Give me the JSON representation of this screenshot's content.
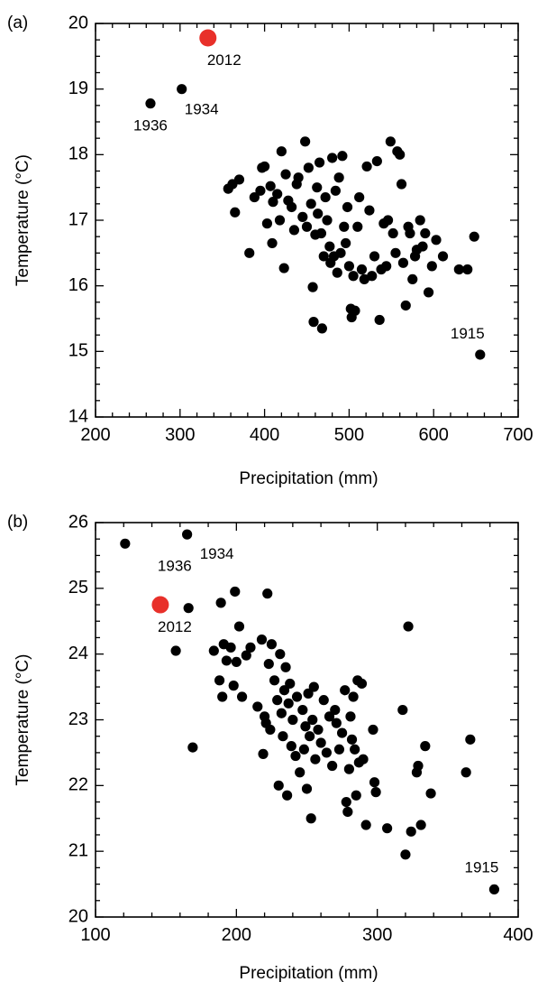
{
  "chart_data": [
    {
      "type": "scatter",
      "panel_label": "(a)",
      "xlabel": "Precipitation (mm)",
      "ylabel": "Temperature (°C)",
      "xlim": [
        200,
        700
      ],
      "ylim": [
        14,
        20
      ],
      "x_ticks": [
        200,
        300,
        400,
        500,
        600,
        700
      ],
      "y_ticks": [
        14,
        15,
        16,
        17,
        18,
        19,
        20
      ],
      "grid": false,
      "highlight_color": "#e8302a",
      "point_color": "#000000",
      "highlight": {
        "x": 333,
        "y": 19.78,
        "label": "2012"
      },
      "annotations": [
        {
          "x": 265,
          "y": 18.78,
          "label": "1936"
        },
        {
          "x": 302,
          "y": 19.0,
          "label": "1934"
        },
        {
          "x": 655,
          "y": 14.95,
          "label": "1915"
        }
      ],
      "points": [
        [
          265,
          18.78
        ],
        [
          302,
          19.0
        ],
        [
          655,
          14.95
        ],
        [
          357,
          17.48
        ],
        [
          362,
          17.55
        ],
        [
          365,
          17.12
        ],
        [
          370,
          17.62
        ],
        [
          382,
          16.5
        ],
        [
          388,
          17.35
        ],
        [
          395,
          17.45
        ],
        [
          397,
          17.8
        ],
        [
          400,
          17.82
        ],
        [
          403,
          16.95
        ],
        [
          407,
          17.52
        ],
        [
          409,
          16.65
        ],
        [
          410,
          17.28
        ],
        [
          415,
          17.4
        ],
        [
          418,
          17.0
        ],
        [
          420,
          18.05
        ],
        [
          423,
          16.27
        ],
        [
          425,
          17.7
        ],
        [
          428,
          17.3
        ],
        [
          432,
          17.2
        ],
        [
          435,
          16.85
        ],
        [
          438,
          17.55
        ],
        [
          440,
          17.65
        ],
        [
          445,
          17.05
        ],
        [
          448,
          18.2
        ],
        [
          450,
          16.9
        ],
        [
          452,
          17.8
        ],
        [
          455,
          17.25
        ],
        [
          457,
          15.98
        ],
        [
          458,
          15.45
        ],
        [
          460,
          16.78
        ],
        [
          462,
          17.5
        ],
        [
          463,
          17.1
        ],
        [
          465,
          17.88
        ],
        [
          467,
          16.8
        ],
        [
          468,
          15.35
        ],
        [
          470,
          16.45
        ],
        [
          472,
          17.35
        ],
        [
          474,
          17.0
        ],
        [
          477,
          16.6
        ],
        [
          478,
          16.35
        ],
        [
          480,
          17.95
        ],
        [
          482,
          16.45
        ],
        [
          484,
          17.45
        ],
        [
          486,
          16.2
        ],
        [
          488,
          17.65
        ],
        [
          490,
          16.5
        ],
        [
          492,
          17.98
        ],
        [
          494,
          16.9
        ],
        [
          496,
          16.65
        ],
        [
          498,
          17.2
        ],
        [
          500,
          16.3
        ],
        [
          502,
          15.65
        ],
        [
          503,
          15.52
        ],
        [
          505,
          16.15
        ],
        [
          507,
          15.62
        ],
        [
          510,
          16.9
        ],
        [
          512,
          17.35
        ],
        [
          515,
          16.25
        ],
        [
          518,
          16.1
        ],
        [
          521,
          17.82
        ],
        [
          524,
          17.15
        ],
        [
          527,
          16.15
        ],
        [
          530,
          16.45
        ],
        [
          533,
          17.9
        ],
        [
          536,
          15.48
        ],
        [
          538,
          16.25
        ],
        [
          541,
          16.95
        ],
        [
          544,
          16.3
        ],
        [
          546,
          17.0
        ],
        [
          549,
          18.2
        ],
        [
          552,
          16.8
        ],
        [
          555,
          16.5
        ],
        [
          557,
          18.05
        ],
        [
          560,
          18.0
        ],
        [
          562,
          17.55
        ],
        [
          564,
          16.35
        ],
        [
          567,
          15.7
        ],
        [
          570,
          16.9
        ],
        [
          572,
          16.8
        ],
        [
          575,
          16.1
        ],
        [
          578,
          16.45
        ],
        [
          580,
          16.55
        ],
        [
          584,
          17.0
        ],
        [
          587,
          16.6
        ],
        [
          590,
          16.8
        ],
        [
          594,
          15.9
        ],
        [
          598,
          16.3
        ],
        [
          603,
          16.7
        ],
        [
          611,
          16.45
        ],
        [
          630,
          16.25
        ],
        [
          640,
          16.25
        ],
        [
          648,
          16.75
        ]
      ]
    },
    {
      "type": "scatter",
      "panel_label": "(b)",
      "xlabel": "Precipitation (mm)",
      "ylabel": "Temperature (°C)",
      "xlim": [
        100,
        400
      ],
      "ylim": [
        20,
        26
      ],
      "x_ticks": [
        100,
        200,
        300,
        400
      ],
      "y_ticks": [
        20,
        21,
        22,
        23,
        24,
        25,
        26
      ],
      "grid": false,
      "highlight_color": "#e8302a",
      "point_color": "#000000",
      "highlight": {
        "x": 146,
        "y": 24.75,
        "label": "2012"
      },
      "annotations": [
        {
          "x": 121,
          "y": 25.68,
          "label": "1936"
        },
        {
          "x": 165,
          "y": 25.82,
          "label": "1934"
        },
        {
          "x": 383,
          "y": 20.42,
          "label": "1915"
        }
      ],
      "points": [
        [
          121,
          25.68
        ],
        [
          165,
          25.82
        ],
        [
          383,
          20.42
        ],
        [
          157,
          24.05
        ],
        [
          166,
          24.7
        ],
        [
          169,
          22.58
        ],
        [
          184,
          24.05
        ],
        [
          188,
          23.6
        ],
        [
          189,
          24.78
        ],
        [
          190,
          23.35
        ],
        [
          191,
          24.15
        ],
        [
          193,
          23.9
        ],
        [
          196,
          24.1
        ],
        [
          198,
          23.52
        ],
        [
          199,
          24.95
        ],
        [
          200,
          23.88
        ],
        [
          202,
          24.42
        ],
        [
          204,
          23.35
        ],
        [
          207,
          23.98
        ],
        [
          210,
          24.1
        ],
        [
          215,
          23.2
        ],
        [
          218,
          24.22
        ],
        [
          219,
          22.48
        ],
        [
          220,
          23.05
        ],
        [
          221,
          22.95
        ],
        [
          222,
          24.92
        ],
        [
          223,
          23.85
        ],
        [
          224,
          22.85
        ],
        [
          225,
          24.15
        ],
        [
          227,
          23.6
        ],
        [
          229,
          23.3
        ],
        [
          230,
          22.0
        ],
        [
          231,
          24.0
        ],
        [
          232,
          23.1
        ],
        [
          233,
          22.75
        ],
        [
          234,
          23.45
        ],
        [
          235,
          23.8
        ],
        [
          236,
          21.85
        ],
        [
          237,
          23.25
        ],
        [
          238,
          23.55
        ],
        [
          239,
          22.6
        ],
        [
          240,
          23.0
        ],
        [
          242,
          22.45
        ],
        [
          243,
          23.35
        ],
        [
          245,
          22.2
        ],
        [
          247,
          23.15
        ],
        [
          248,
          22.55
        ],
        [
          249,
          22.9
        ],
        [
          250,
          21.95
        ],
        [
          251,
          23.4
        ],
        [
          252,
          22.75
        ],
        [
          253,
          21.5
        ],
        [
          254,
          23.0
        ],
        [
          255,
          23.5
        ],
        [
          256,
          22.4
        ],
        [
          258,
          22.85
        ],
        [
          260,
          22.65
        ],
        [
          262,
          23.3
        ],
        [
          264,
          22.5
        ],
        [
          266,
          23.05
        ],
        [
          268,
          22.3
        ],
        [
          270,
          23.15
        ],
        [
          271,
          22.95
        ],
        [
          273,
          22.55
        ],
        [
          275,
          22.8
        ],
        [
          277,
          23.45
        ],
        [
          278,
          21.75
        ],
        [
          279,
          21.6
        ],
        [
          280,
          22.25
        ],
        [
          281,
          23.05
        ],
        [
          282,
          22.7
        ],
        [
          283,
          23.35
        ],
        [
          284,
          22.55
        ],
        [
          285,
          21.85
        ],
        [
          286,
          23.6
        ],
        [
          287,
          22.35
        ],
        [
          289,
          23.55
        ],
        [
          290,
          22.4
        ],
        [
          292,
          21.4
        ],
        [
          297,
          22.85
        ],
        [
          298,
          22.05
        ],
        [
          299,
          21.9
        ],
        [
          307,
          21.35
        ],
        [
          318,
          23.15
        ],
        [
          320,
          20.95
        ],
        [
          322,
          24.42
        ],
        [
          324,
          21.3
        ],
        [
          328,
          22.2
        ],
        [
          329,
          22.3
        ],
        [
          331,
          21.4
        ],
        [
          334,
          22.6
        ],
        [
          338,
          21.88
        ],
        [
          363,
          22.2
        ],
        [
          366,
          22.7
        ]
      ]
    }
  ]
}
